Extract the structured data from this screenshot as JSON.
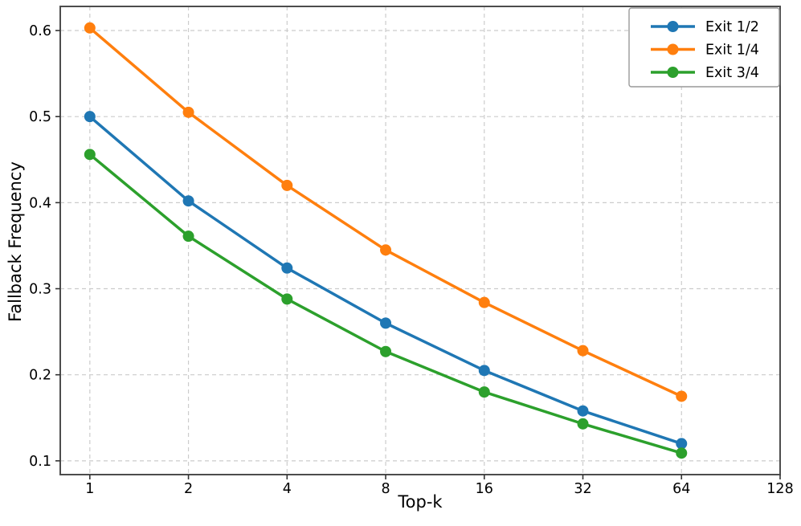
{
  "figure": {
    "background": "#ffffff"
  },
  "chart_data": {
    "type": "line",
    "title": "",
    "xlabel": "Top-k",
    "ylabel": "Fallback Frequency",
    "xscale": "log2",
    "x": [
      1,
      2,
      4,
      8,
      16,
      32,
      64
    ],
    "series": [
      {
        "name": "Exit 1/2",
        "color": "#1f77b4",
        "values": [
          0.5,
          0.402,
          0.324,
          0.26,
          0.205,
          0.158,
          0.12
        ]
      },
      {
        "name": "Exit 1/4",
        "color": "#ff7f0e",
        "values": [
          0.603,
          0.505,
          0.42,
          0.345,
          0.284,
          0.228,
          0.175
        ]
      },
      {
        "name": "Exit 3/4",
        "color": "#2ca02c",
        "values": [
          0.456,
          0.361,
          0.288,
          0.227,
          0.18,
          0.143,
          0.109
        ]
      }
    ],
    "xticks": [
      1,
      2,
      4,
      8,
      16,
      32,
      64,
      128
    ],
    "xtick_labels": [
      "1",
      "2",
      "4",
      "8",
      "16",
      "32",
      "64",
      "128"
    ],
    "yticks": [
      0.1,
      0.2,
      0.3,
      0.4,
      0.5,
      0.6
    ],
    "ytick_labels": [
      "0.1",
      "0.2",
      "0.3",
      "0.4",
      "0.5",
      "0.6"
    ],
    "xlim_log2": [
      -0.3,
      7.0
    ],
    "ylim": [
      0.084,
      0.628
    ],
    "grid": true,
    "legend": {
      "position": "upper right",
      "entries": [
        "Exit 1/2",
        "Exit 1/4",
        "Exit 3/4"
      ]
    },
    "style": {
      "grid_color": "#cccccc",
      "spine_color": "#4d4d4d",
      "tick_color": "#333333",
      "text_color": "#000000",
      "legend_border_color": "#999999",
      "legend_bg": "#ffffff",
      "line_width": 3.5,
      "marker_radius": 7
    }
  }
}
